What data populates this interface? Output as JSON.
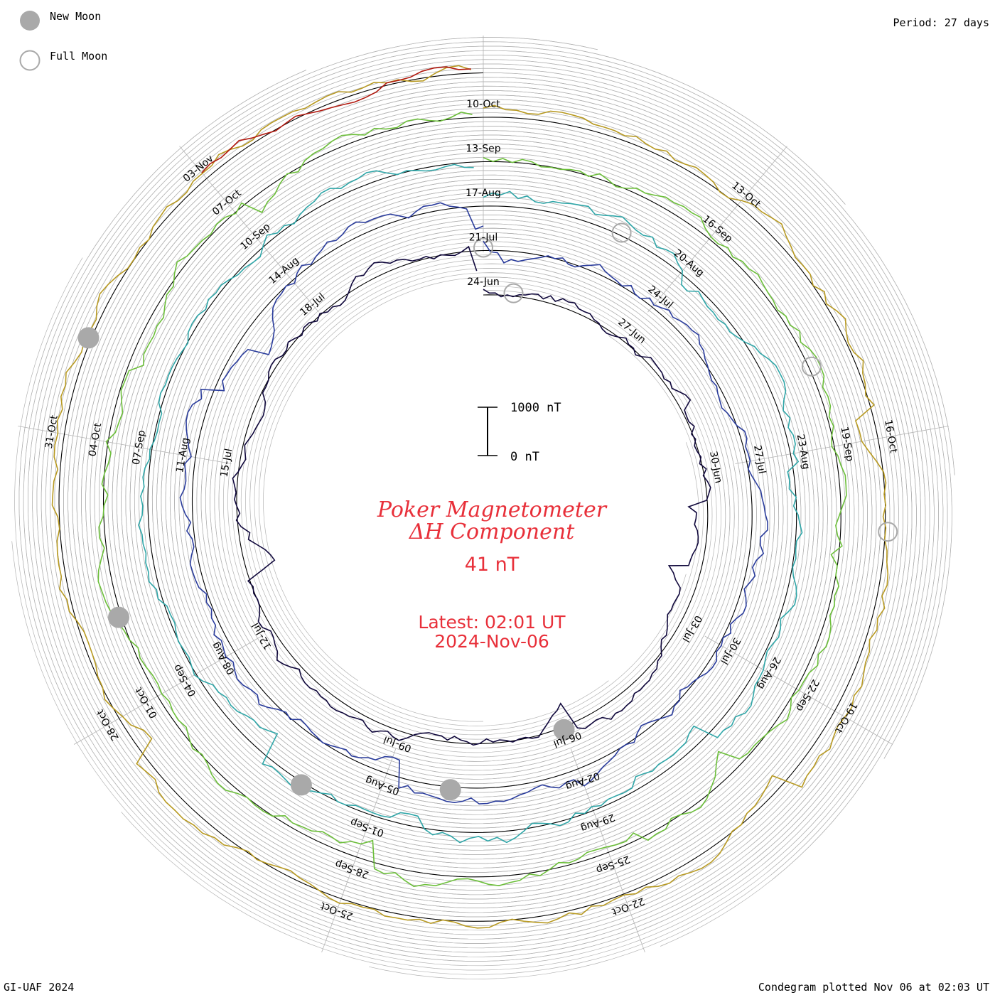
{
  "legend": {
    "new_moon_label": "New Moon",
    "full_moon_label": "Full Moon"
  },
  "period_label": "Period: 27 days",
  "footer": {
    "credit": "GI-UAF 2024",
    "plotted": "Condegram plotted Nov 06 at 02:03 UT"
  },
  "center": {
    "title_line1": "Poker Magnetometer",
    "title_line2": "ΔH Component",
    "current_value": "41 nT",
    "latest_line1": "Latest: 02:01 UT",
    "latest_line2": "2024-Nov-06"
  },
  "scale_bar": {
    "top_label": "1000 nT",
    "bottom_label": "0 nT"
  },
  "colors": {
    "title": "#e8303a",
    "baseline": "#000000",
    "grid": "#b4b4b4",
    "moon_new": "#a9a9a9",
    "moon_full": "#a9a9a9"
  },
  "chart_data": {
    "type": "line",
    "title": "Poker Magnetometer ΔH Component",
    "period_days": 27,
    "units": "nT",
    "series": [
      {
        "color": "#10083c",
        "dates": [
          "24-Jun",
          "27-Jun",
          "30-Jun",
          "03-Jul",
          "06-Jul",
          "09-Jul",
          "12-Jul",
          "15-Jul",
          "18-Jul"
        ]
      },
      {
        "color": "#2a3c9c",
        "dates": [
          "21-Jul",
          "24-Jul",
          "27-Jul",
          "30-Jul",
          "02-Aug",
          "05-Aug",
          "08-Aug",
          "11-Aug",
          "14-Aug"
        ]
      },
      {
        "color": "#2fa6a8",
        "dates": [
          "17-Aug",
          "20-Aug",
          "23-Aug",
          "26-Aug",
          "29-Aug",
          "01-Sep",
          "04-Sep",
          "07-Sep",
          "10-Sep"
        ]
      },
      {
        "color": "#6cbf3a",
        "dates": [
          "13-Sep",
          "16-Sep",
          "19-Sep",
          "22-Sep",
          "25-Sep",
          "28-Sep",
          "01-Oct",
          "04-Oct",
          "07-Oct"
        ]
      },
      {
        "color": "#b89a22",
        "dates": [
          "10-Oct",
          "13-Oct",
          "16-Oct",
          "19-Oct",
          "22-Oct",
          "25-Oct",
          "28-Oct",
          "31-Oct"
        ]
      },
      {
        "color": "#b21a10",
        "dates": [
          "03-Nov"
        ]
      }
    ],
    "moon_phases": {
      "new_moon": [
        "06-Jul",
        "04-Aug",
        "02-Sep",
        "02-Oct",
        "01-Nov"
      ],
      "full_moon": [
        "21-Jun",
        "21-Jul",
        "19-Aug",
        "18-Sep",
        "17-Oct"
      ]
    }
  }
}
